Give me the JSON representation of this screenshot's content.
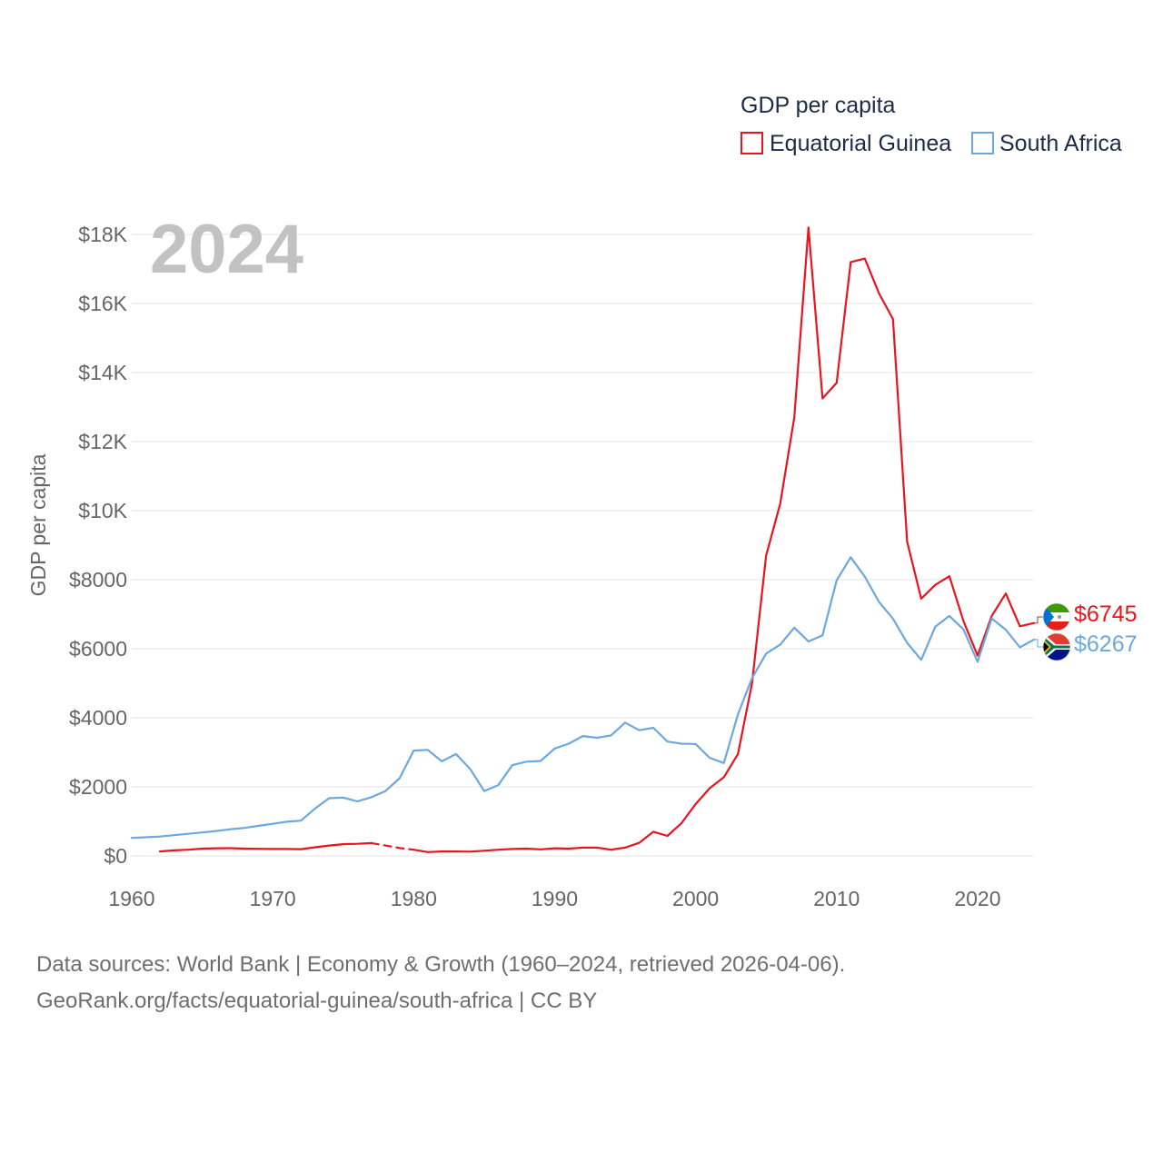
{
  "chart_data": {
    "type": "line",
    "title": "GDP per capita",
    "year_badge": "2024",
    "ylabel": "GDP per capita",
    "xlabel": "",
    "xlim": [
      1960,
      2024
    ],
    "ylim": [
      0,
      18000
    ],
    "y_ticks": [
      {
        "value": 0,
        "label": "$0"
      },
      {
        "value": 2000,
        "label": "$2000"
      },
      {
        "value": 4000,
        "label": "$4000"
      },
      {
        "value": 6000,
        "label": "$6000"
      },
      {
        "value": 8000,
        "label": "$8000"
      },
      {
        "value": 10000,
        "label": "$10K"
      },
      {
        "value": 12000,
        "label": "$12K"
      },
      {
        "value": 14000,
        "label": "$14K"
      },
      {
        "value": 16000,
        "label": "$16K"
      },
      {
        "value": 18000,
        "label": "$18K"
      }
    ],
    "x_ticks": [
      {
        "value": 1960,
        "label": "1960"
      },
      {
        "value": 1970,
        "label": "1970"
      },
      {
        "value": 1980,
        "label": "1980"
      },
      {
        "value": 1990,
        "label": "1990"
      },
      {
        "value": 2000,
        "label": "2000"
      },
      {
        "value": 2010,
        "label": "2010"
      },
      {
        "value": 2020,
        "label": "2020"
      }
    ],
    "grid": true,
    "legend_position": "top-right",
    "series": [
      {
        "name": "Equatorial Guinea",
        "color": "#e8141e",
        "end_label": "$6745",
        "end_value": 6745,
        "gap_years": [
          1978,
          1979
        ],
        "points": [
          [
            1962,
            130
          ],
          [
            1963,
            160
          ],
          [
            1964,
            180
          ],
          [
            1965,
            210
          ],
          [
            1966,
            220
          ],
          [
            1967,
            225
          ],
          [
            1968,
            210
          ],
          [
            1969,
            205
          ],
          [
            1970,
            200
          ],
          [
            1971,
            200
          ],
          [
            1972,
            195
          ],
          [
            1973,
            250
          ],
          [
            1974,
            300
          ],
          [
            1975,
            340
          ],
          [
            1976,
            350
          ],
          [
            1977,
            370
          ],
          [
            1978,
            300
          ],
          [
            1979,
            230
          ],
          [
            1980,
            180
          ],
          [
            1981,
            110
          ],
          [
            1982,
            130
          ],
          [
            1983,
            130
          ],
          [
            1984,
            125
          ],
          [
            1985,
            150
          ],
          [
            1986,
            180
          ],
          [
            1987,
            200
          ],
          [
            1988,
            210
          ],
          [
            1989,
            190
          ],
          [
            1990,
            220
          ],
          [
            1991,
            210
          ],
          [
            1992,
            240
          ],
          [
            1993,
            240
          ],
          [
            1994,
            180
          ],
          [
            1995,
            240
          ],
          [
            1996,
            380
          ],
          [
            1997,
            700
          ],
          [
            1998,
            580
          ],
          [
            1999,
            950
          ],
          [
            2000,
            1500
          ],
          [
            2001,
            1960
          ],
          [
            2002,
            2280
          ],
          [
            2003,
            2950
          ],
          [
            2004,
            5000
          ],
          [
            2005,
            8700
          ],
          [
            2006,
            10200
          ],
          [
            2007,
            12700
          ],
          [
            2008,
            18200
          ],
          [
            2009,
            13250
          ],
          [
            2010,
            13700
          ],
          [
            2011,
            17200
          ],
          [
            2012,
            17300
          ],
          [
            2013,
            16300
          ],
          [
            2014,
            15550
          ],
          [
            2015,
            9100
          ],
          [
            2016,
            7450
          ],
          [
            2017,
            7850
          ],
          [
            2018,
            8100
          ],
          [
            2019,
            6800
          ],
          [
            2020,
            5800
          ],
          [
            2021,
            6950
          ],
          [
            2022,
            7600
          ],
          [
            2023,
            6650
          ],
          [
            2024,
            6745
          ]
        ]
      },
      {
        "name": "South Africa",
        "color": "#6aa8e0",
        "end_label": "$6267",
        "end_value": 6267,
        "gap_years": [],
        "points": [
          [
            1960,
            520
          ],
          [
            1961,
            540
          ],
          [
            1962,
            560
          ],
          [
            1963,
            600
          ],
          [
            1964,
            640
          ],
          [
            1965,
            680
          ],
          [
            1966,
            720
          ],
          [
            1967,
            770
          ],
          [
            1968,
            810
          ],
          [
            1969,
            870
          ],
          [
            1970,
            930
          ],
          [
            1971,
            990
          ],
          [
            1972,
            1020
          ],
          [
            1973,
            1370
          ],
          [
            1974,
            1670
          ],
          [
            1975,
            1690
          ],
          [
            1976,
            1580
          ],
          [
            1977,
            1700
          ],
          [
            1978,
            1880
          ],
          [
            1979,
            2250
          ],
          [
            1980,
            3050
          ],
          [
            1981,
            3070
          ],
          [
            1982,
            2740
          ],
          [
            1983,
            2950
          ],
          [
            1984,
            2520
          ],
          [
            1985,
            1880
          ],
          [
            1986,
            2050
          ],
          [
            1987,
            2630
          ],
          [
            1988,
            2730
          ],
          [
            1989,
            2750
          ],
          [
            1990,
            3110
          ],
          [
            1991,
            3250
          ],
          [
            1992,
            3470
          ],
          [
            1993,
            3420
          ],
          [
            1994,
            3490
          ],
          [
            1995,
            3860
          ],
          [
            1996,
            3640
          ],
          [
            1997,
            3710
          ],
          [
            1998,
            3310
          ],
          [
            1999,
            3250
          ],
          [
            2000,
            3240
          ],
          [
            2001,
            2840
          ],
          [
            2002,
            2690
          ],
          [
            2003,
            4100
          ],
          [
            2004,
            5150
          ],
          [
            2005,
            5860
          ],
          [
            2006,
            6120
          ],
          [
            2007,
            6610
          ],
          [
            2008,
            6210
          ],
          [
            2009,
            6390
          ],
          [
            2010,
            7980
          ],
          [
            2011,
            8650
          ],
          [
            2012,
            8090
          ],
          [
            2013,
            7360
          ],
          [
            2014,
            6870
          ],
          [
            2015,
            6170
          ],
          [
            2016,
            5680
          ],
          [
            2017,
            6640
          ],
          [
            2018,
            6950
          ],
          [
            2019,
            6560
          ],
          [
            2020,
            5620
          ],
          [
            2021,
            6880
          ],
          [
            2022,
            6550
          ],
          [
            2023,
            6040
          ],
          [
            2024,
            6267
          ]
        ]
      }
    ]
  },
  "footer": {
    "line1": "Data sources: World Bank | Economy & Growth (1960–2024, retrieved 2026-04-06).",
    "line2": "GeoRank.org/facts/equatorial-guinea/south-africa | CC BY"
  },
  "icons": {
    "flag1": "equatorial-guinea-flag-icon",
    "flag2": "south-africa-flag-icon"
  }
}
